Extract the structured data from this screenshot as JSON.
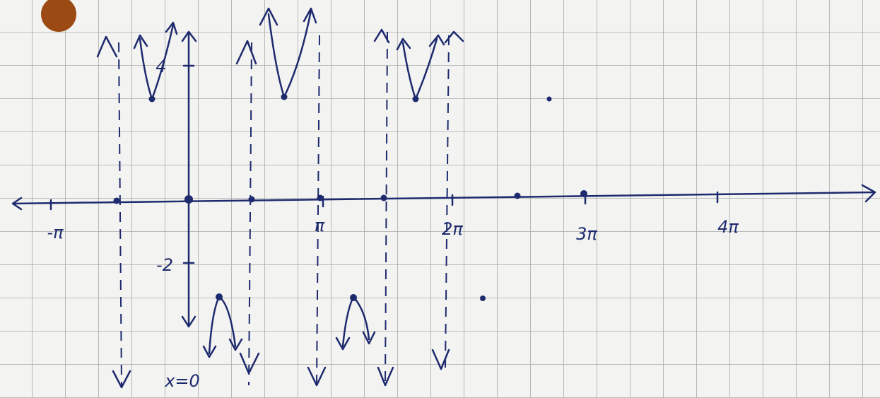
{
  "x_axis_labels": [
    "-π",
    "π",
    "2π",
    "3π",
    "4π"
  ],
  "y_axis_labels": [
    "4",
    "-2"
  ],
  "asymptote_label": "x=0"
}
